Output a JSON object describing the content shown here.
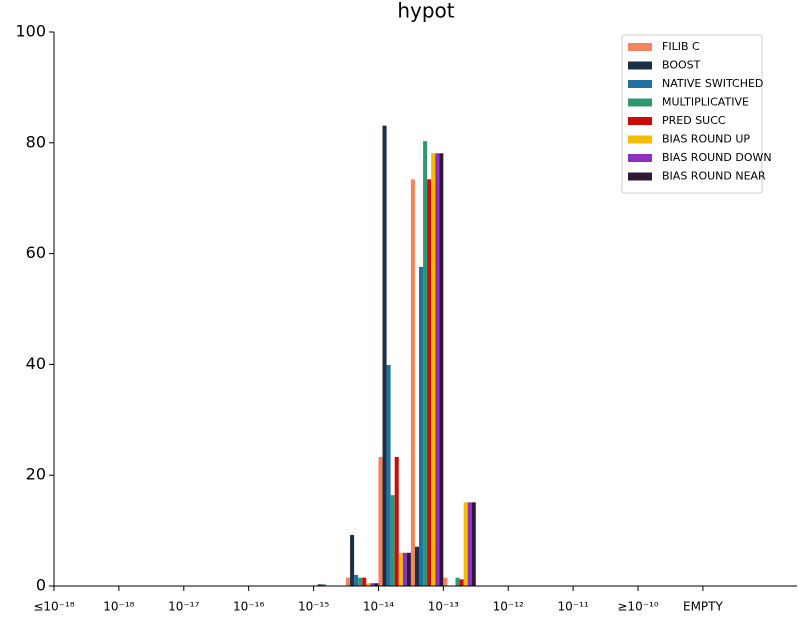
{
  "chart_data": {
    "type": "bar",
    "title": "hypot",
    "x": [
      4,
      4.5,
      5,
      5.5,
      6
    ],
    "bin_width": 0.5,
    "series": [
      {
        "name": "FILIB C",
        "color": "#f4845f",
        "values": [
          0,
          1.5,
          23.3,
          73.4,
          1.5
        ]
      },
      {
        "name": "BOOST",
        "color": "#1b2f45",
        "values": [
          0.3,
          9.2,
          83.1,
          7.1,
          0
        ]
      },
      {
        "name": "NATIVE SWITCHED",
        "color": "#2271a0",
        "values": [
          0.3,
          2,
          39.9,
          57.6,
          0
        ]
      },
      {
        "name": "MULTIPLICATIVE",
        "color": "#2e9970",
        "values": [
          0,
          1.5,
          16.4,
          80.3,
          1.5
        ]
      },
      {
        "name": "PRED SUCC",
        "color": "#cc0a0a",
        "values": [
          0,
          1.5,
          23.3,
          73.4,
          1.2
        ]
      },
      {
        "name": "BIAS ROUND UP",
        "color": "#f5bc00",
        "values": [
          0,
          0.5,
          6,
          78.1,
          15.1
        ]
      },
      {
        "name": "BIAS ROUND DOWN",
        "color": "#8e2fc0",
        "values": [
          0,
          0.5,
          6,
          78.1,
          15.1
        ]
      },
      {
        "name": "BIAS ROUND NEAR",
        "color": "#2a1a35",
        "values": [
          0,
          0.5,
          6,
          78.1,
          15.1
        ]
      }
    ],
    "xlim": [
      0,
      11.45
    ],
    "xticks": [
      {
        "value": 0,
        "label": "≤10⁻¹⁸"
      },
      {
        "value": 1,
        "label": "10⁻¹⁸"
      },
      {
        "value": 2,
        "label": "10⁻¹⁷"
      },
      {
        "value": 3,
        "label": "10⁻¹⁶"
      },
      {
        "value": 4,
        "label": "10⁻¹⁵"
      },
      {
        "value": 5,
        "label": "10⁻¹⁴"
      },
      {
        "value": 6,
        "label": "10⁻¹³"
      },
      {
        "value": 7,
        "label": "10⁻¹²"
      },
      {
        "value": 8,
        "label": "10⁻¹¹"
      },
      {
        "value": 9,
        "label": "≥10⁻¹⁰"
      },
      {
        "value": 10,
        "label": "EMPTY"
      }
    ],
    "ylim": [
      0,
      100
    ],
    "yticks": [
      0,
      20,
      40,
      60,
      80,
      100
    ],
    "legend": "upper right"
  }
}
